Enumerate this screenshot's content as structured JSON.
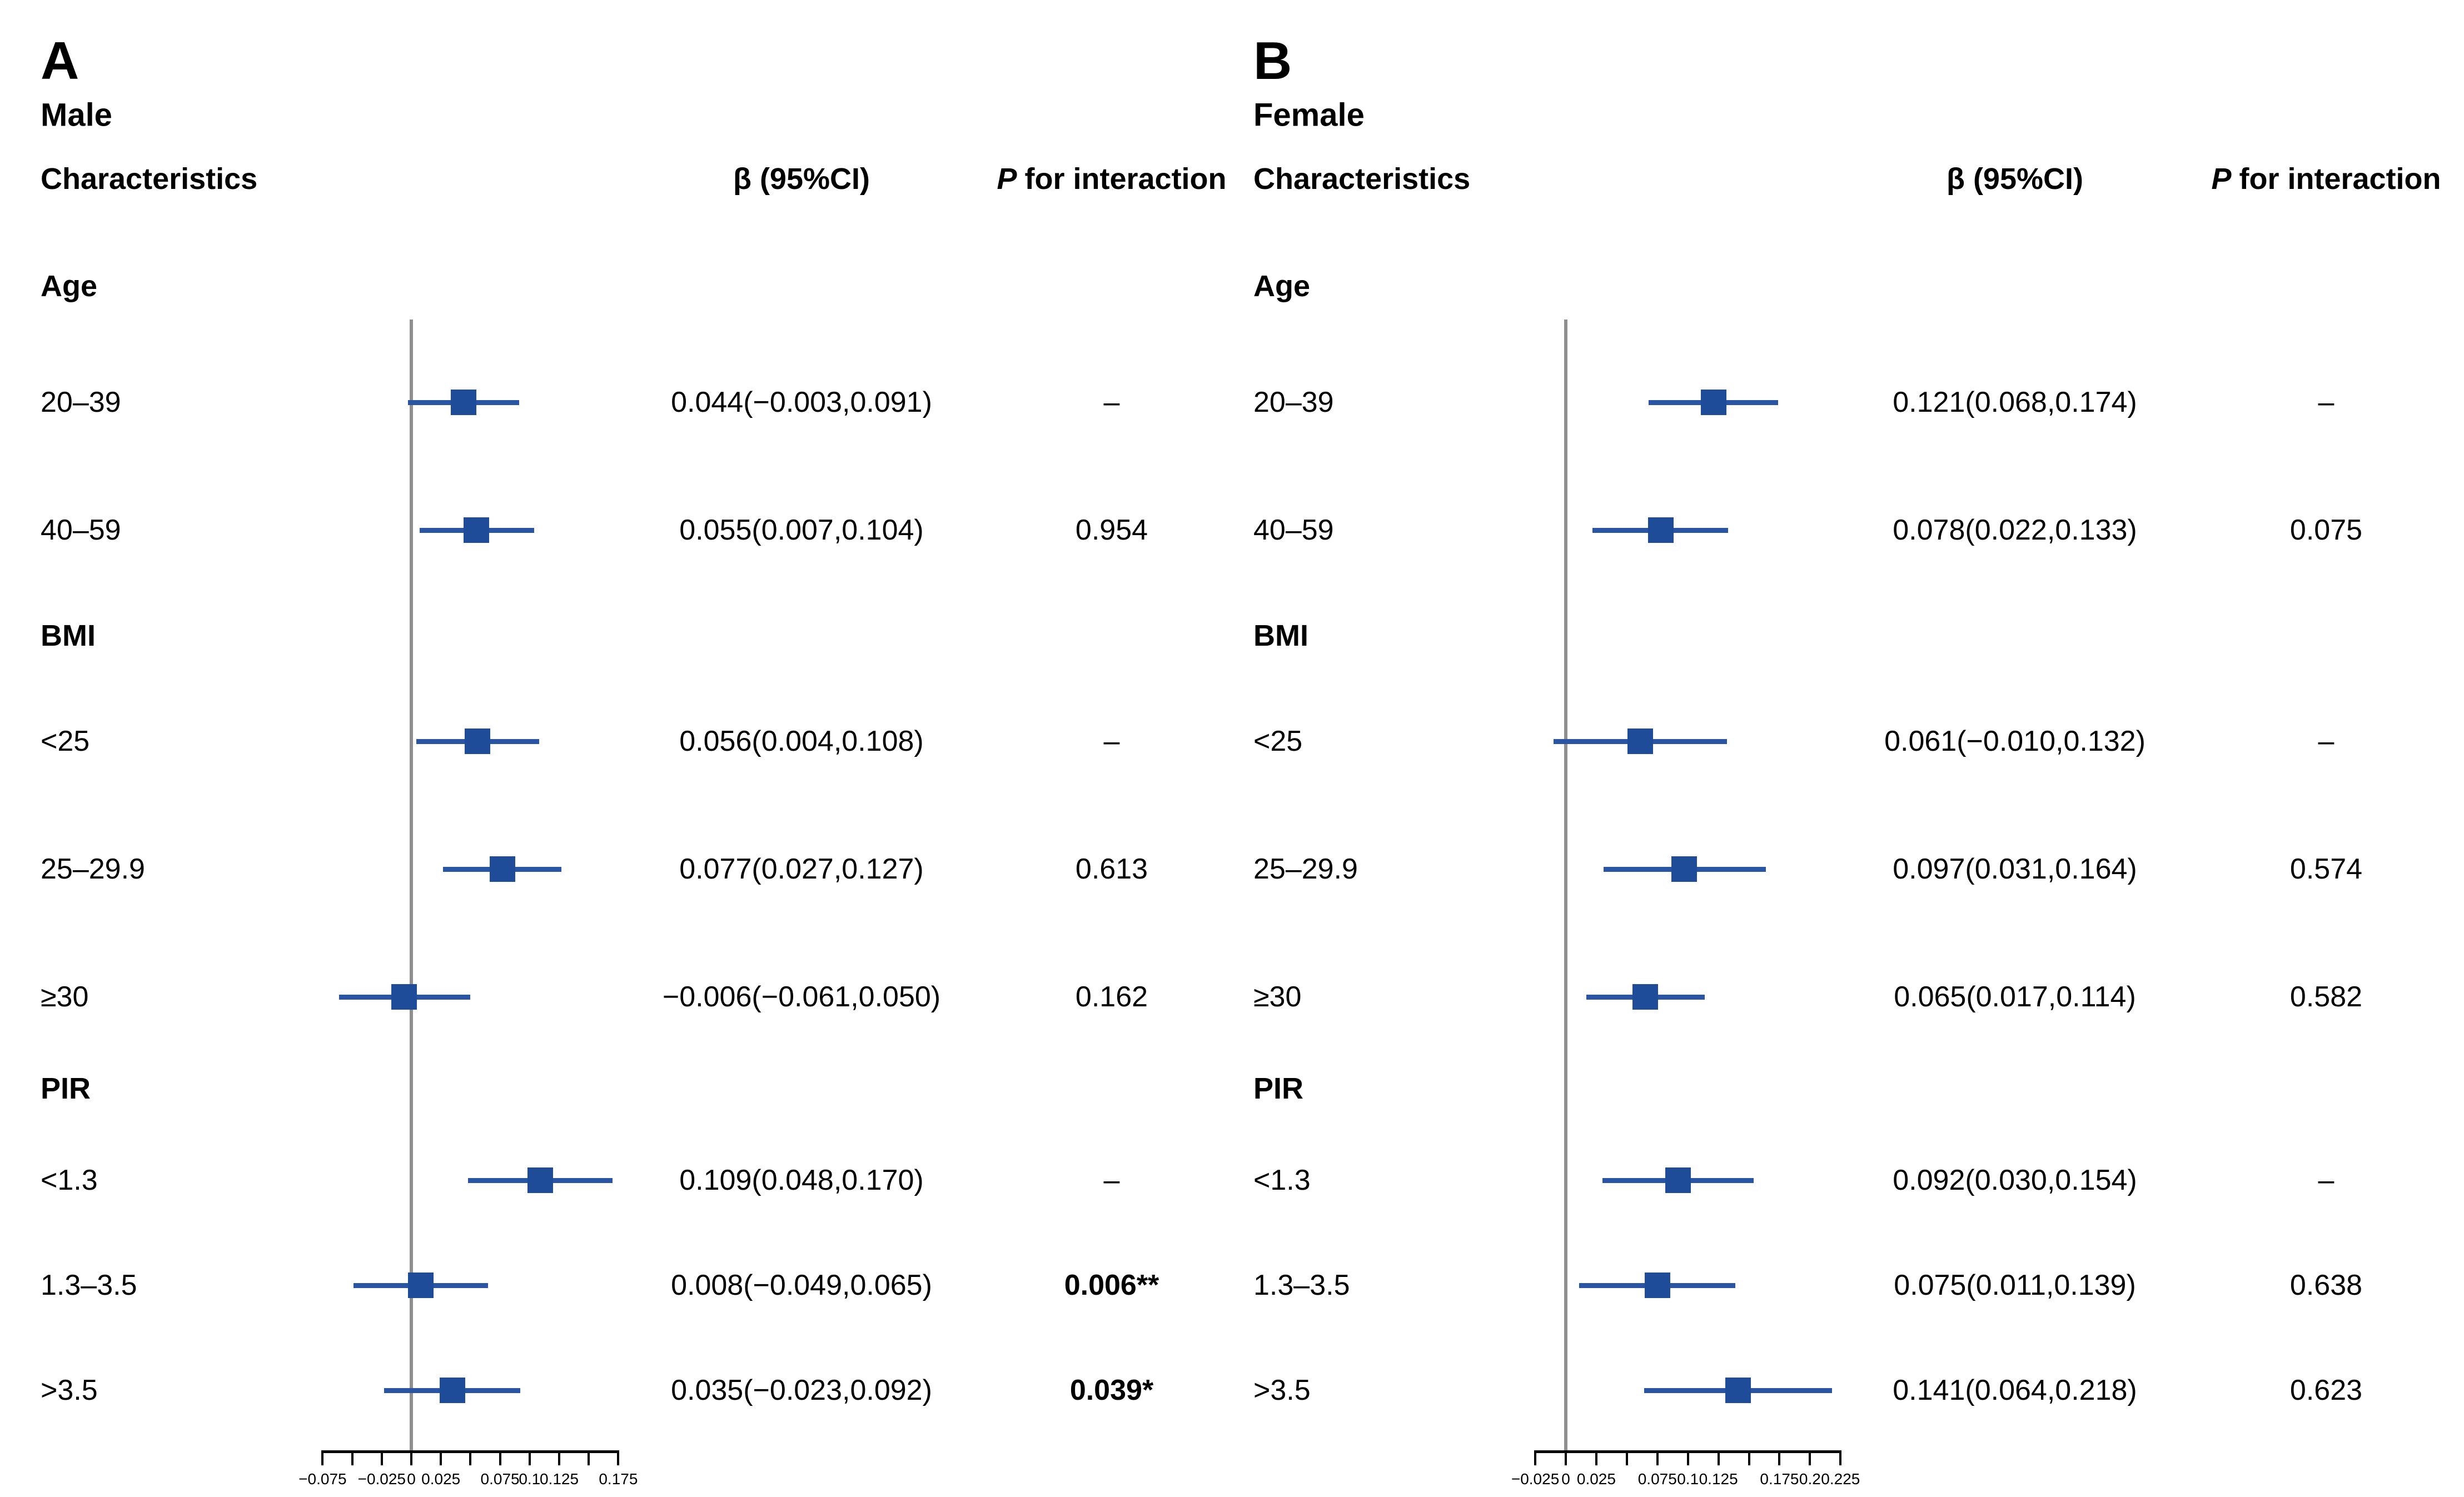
{
  "colors": {
    "marker": "#1F4C99",
    "ci_line": "#2A55A4",
    "reference_line": "#8F8F8F",
    "axis": "#000000",
    "text": "#000000",
    "background": "#FFFFFF"
  },
  "chart_data": [
    {
      "type": "scatter",
      "subtype": "forest-plot",
      "panel_letter": "A",
      "title": "Male",
      "columns": {
        "characteristics": "Characteristics",
        "beta": "β (95%CI)",
        "p_italic": "P",
        "p_rest": "for interaction"
      },
      "xlim": [
        -0.075,
        0.175
      ],
      "tick_step": 0.025,
      "reference_line": 0,
      "legend_position": "none",
      "grid": false,
      "ticks": [
        {
          "value": -0.075,
          "label": "−0.075"
        },
        {
          "value": -0.05,
          "label": ""
        },
        {
          "value": -0.025,
          "label": "−0.025"
        },
        {
          "value": 0,
          "label": "0"
        },
        {
          "value": 0.025,
          "label": "0.025"
        },
        {
          "value": 0.05,
          "label": ""
        },
        {
          "value": 0.075,
          "label": "0.075"
        },
        {
          "value": 0.1,
          "label": "0.1"
        },
        {
          "value": 0.125,
          "label": "0.125"
        },
        {
          "value": 0.15,
          "label": ""
        },
        {
          "value": 0.175,
          "label": "0.175"
        }
      ],
      "rows": [
        {
          "kind": "group",
          "label": "Age"
        },
        {
          "kind": "estimate",
          "label": "20–39",
          "estimate": 0.044,
          "ci_low": -0.003,
          "ci_high": 0.091,
          "beta_text": "0.044(−0.003,0.091)",
          "p_text": "–",
          "p_bold": false
        },
        {
          "kind": "estimate",
          "label": "40–59",
          "estimate": 0.055,
          "ci_low": 0.007,
          "ci_high": 0.104,
          "beta_text": "0.055(0.007,0.104)",
          "p_text": "0.954",
          "p_bold": false
        },
        {
          "kind": "group",
          "label": "BMI"
        },
        {
          "kind": "estimate",
          "label": "<25",
          "estimate": 0.056,
          "ci_low": 0.004,
          "ci_high": 0.108,
          "beta_text": "0.056(0.004,0.108)",
          "p_text": "–",
          "p_bold": false
        },
        {
          "kind": "estimate",
          "label": "25–29.9",
          "estimate": 0.077,
          "ci_low": 0.027,
          "ci_high": 0.127,
          "beta_text": "0.077(0.027,0.127)",
          "p_text": "0.613",
          "p_bold": false
        },
        {
          "kind": "estimate",
          "label": "≥30",
          "estimate": -0.006,
          "ci_low": -0.061,
          "ci_high": 0.05,
          "beta_text": "−0.006(−0.061,0.050)",
          "p_text": "0.162",
          "p_bold": false
        },
        {
          "kind": "group",
          "label": "PIR"
        },
        {
          "kind": "estimate",
          "label": "<1.3",
          "estimate": 0.109,
          "ci_low": 0.048,
          "ci_high": 0.17,
          "beta_text": "0.109(0.048,0.170)",
          "p_text": "–",
          "p_bold": false
        },
        {
          "kind": "estimate",
          "label": "1.3–3.5",
          "estimate": 0.008,
          "ci_low": -0.049,
          "ci_high": 0.065,
          "beta_text": "0.008(−0.049,0.065)",
          "p_text": "0.006**",
          "p_bold": true
        },
        {
          "kind": "estimate",
          "label": ">3.5",
          "estimate": 0.035,
          "ci_low": -0.023,
          "ci_high": 0.092,
          "beta_text": "0.035(−0.023,0.092)",
          "p_text": "0.039*",
          "p_bold": true
        }
      ]
    },
    {
      "type": "scatter",
      "subtype": "forest-plot",
      "panel_letter": "B",
      "title": "Female",
      "columns": {
        "characteristics": "Characteristics",
        "beta": "β (95%CI)",
        "p_italic": "P",
        "p_rest": "for interaction"
      },
      "xlim": [
        -0.025,
        0.225
      ],
      "tick_step": 0.025,
      "reference_line": 0,
      "legend_position": "none",
      "grid": false,
      "ticks": [
        {
          "value": -0.025,
          "label": "−0.025"
        },
        {
          "value": 0,
          "label": "0"
        },
        {
          "value": 0.025,
          "label": "0.025"
        },
        {
          "value": 0.05,
          "label": ""
        },
        {
          "value": 0.075,
          "label": "0.075"
        },
        {
          "value": 0.1,
          "label": "0.1"
        },
        {
          "value": 0.125,
          "label": "0.125"
        },
        {
          "value": 0.15,
          "label": ""
        },
        {
          "value": 0.175,
          "label": "0.175"
        },
        {
          "value": 0.2,
          "label": "0.2"
        },
        {
          "value": 0.225,
          "label": "0.225"
        }
      ],
      "rows": [
        {
          "kind": "group",
          "label": "Age"
        },
        {
          "kind": "estimate",
          "label": "20–39",
          "estimate": 0.121,
          "ci_low": 0.068,
          "ci_high": 0.174,
          "beta_text": "0.121(0.068,0.174)",
          "p_text": "–",
          "p_bold": false
        },
        {
          "kind": "estimate",
          "label": "40–59",
          "estimate": 0.078,
          "ci_low": 0.022,
          "ci_high": 0.133,
          "beta_text": "0.078(0.022,0.133)",
          "p_text": "0.075",
          "p_bold": false
        },
        {
          "kind": "group",
          "label": "BMI"
        },
        {
          "kind": "estimate",
          "label": "<25",
          "estimate": 0.061,
          "ci_low": -0.01,
          "ci_high": 0.132,
          "beta_text": "0.061(−0.010,0.132)",
          "p_text": "–",
          "p_bold": false
        },
        {
          "kind": "estimate",
          "label": "25–29.9",
          "estimate": 0.097,
          "ci_low": 0.031,
          "ci_high": 0.164,
          "beta_text": "0.097(0.031,0.164)",
          "p_text": "0.574",
          "p_bold": false
        },
        {
          "kind": "estimate",
          "label": "≥30",
          "estimate": 0.065,
          "ci_low": 0.017,
          "ci_high": 0.114,
          "beta_text": "0.065(0.017,0.114)",
          "p_text": "0.582",
          "p_bold": false
        },
        {
          "kind": "group",
          "label": "PIR"
        },
        {
          "kind": "estimate",
          "label": "<1.3",
          "estimate": 0.092,
          "ci_low": 0.03,
          "ci_high": 0.154,
          "beta_text": "0.092(0.030,0.154)",
          "p_text": "–",
          "p_bold": false
        },
        {
          "kind": "estimate",
          "label": "1.3–3.5",
          "estimate": 0.075,
          "ci_low": 0.011,
          "ci_high": 0.139,
          "beta_text": "0.075(0.011,0.139)",
          "p_text": "0.638",
          "p_bold": false
        },
        {
          "kind": "estimate",
          "label": ">3.5",
          "estimate": 0.141,
          "ci_low": 0.064,
          "ci_high": 0.218,
          "beta_text": "0.141(0.064,0.218)",
          "p_text": "0.623",
          "p_bold": false
        }
      ]
    }
  ]
}
